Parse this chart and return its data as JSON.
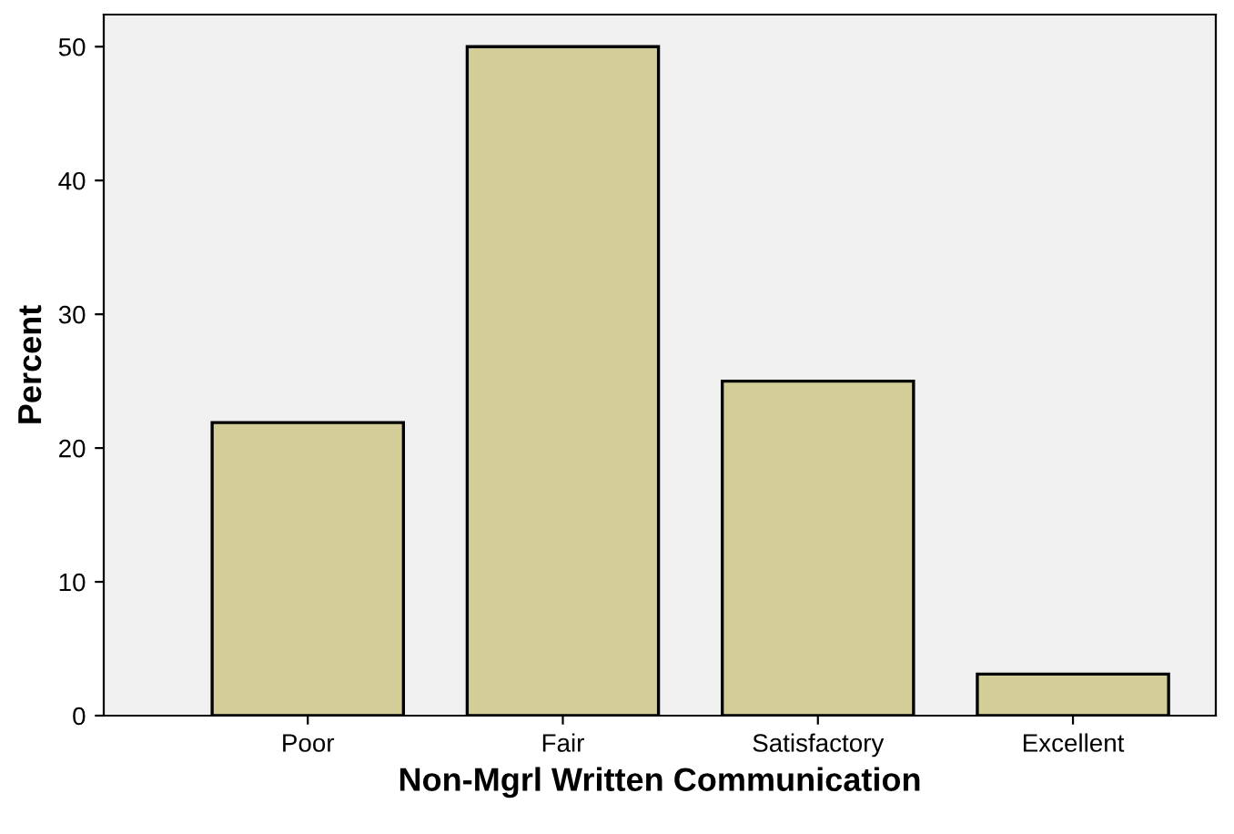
{
  "chart_data": {
    "type": "bar",
    "xlabel": "Non-Mgrl Written Communication",
    "ylabel": "Percent",
    "categories": [
      "Poor",
      "Fair",
      "Satisfactory",
      "Excellent"
    ],
    "values": [
      21.9,
      50.0,
      25.0,
      3.1
    ],
    "color": "#d3ce97",
    "ylim": [
      0,
      52.4
    ],
    "yticks": [
      0,
      10,
      20,
      30,
      40,
      50
    ],
    "grid": false
  }
}
